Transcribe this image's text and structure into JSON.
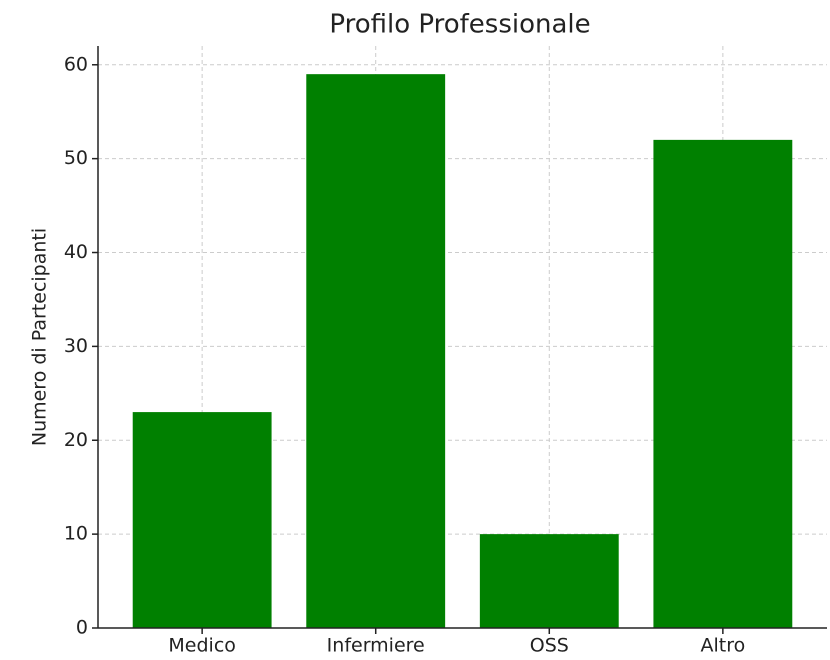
{
  "chart_data": {
    "type": "bar",
    "title": "Profilo Professionale",
    "ylabel": "Numero di Partecipanti",
    "categories": [
      "Medico",
      "Infermiere",
      "OSS",
      "Altro"
    ],
    "values": [
      23,
      59,
      10,
      52
    ],
    "color": "#008000",
    "ylim": [
      0,
      62
    ],
    "yticks": [
      0,
      10,
      20,
      30,
      40,
      50,
      60
    ],
    "grid": true
  }
}
